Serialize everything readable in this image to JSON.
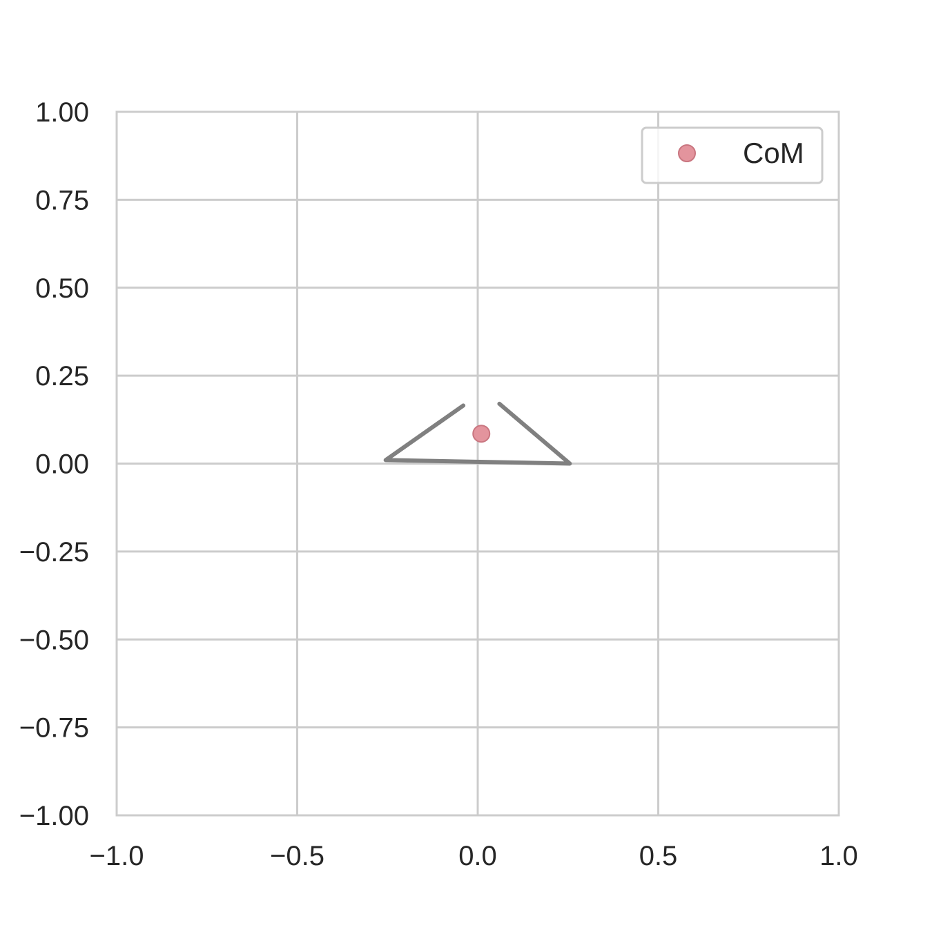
{
  "chart_data": {
    "type": "line",
    "title": "",
    "xlabel": "",
    "ylabel": "",
    "xlim": [
      -1.0,
      1.0
    ],
    "ylim": [
      -1.0,
      1.0
    ],
    "x_ticks": [
      "−1.0",
      "−0.5",
      "0.0",
      "0.5",
      "1.0"
    ],
    "x_tick_values": [
      -1.0,
      -0.5,
      0.0,
      0.5,
      1.0
    ],
    "y_ticks": [
      "−1.00",
      "−0.75",
      "−0.50",
      "−0.25",
      "0.00",
      "0.25",
      "0.50",
      "0.75",
      "1.00"
    ],
    "y_tick_values": [
      -1.0,
      -0.75,
      -0.5,
      -0.25,
      0.0,
      0.25,
      0.5,
      0.75,
      1.0
    ],
    "grid": true,
    "legend_position": "top-right",
    "series": [
      {
        "kind": "line",
        "color": "#808080",
        "x": [
          -0.04,
          -0.255,
          0.255,
          0.06
        ],
        "y": [
          0.165,
          0.01,
          0.0,
          0.17
        ]
      },
      {
        "kind": "scatter",
        "name": "CoM",
        "color": "#e3949d",
        "edge_color": "#c97680",
        "x": [
          0.01
        ],
        "y": [
          0.085
        ]
      }
    ]
  }
}
